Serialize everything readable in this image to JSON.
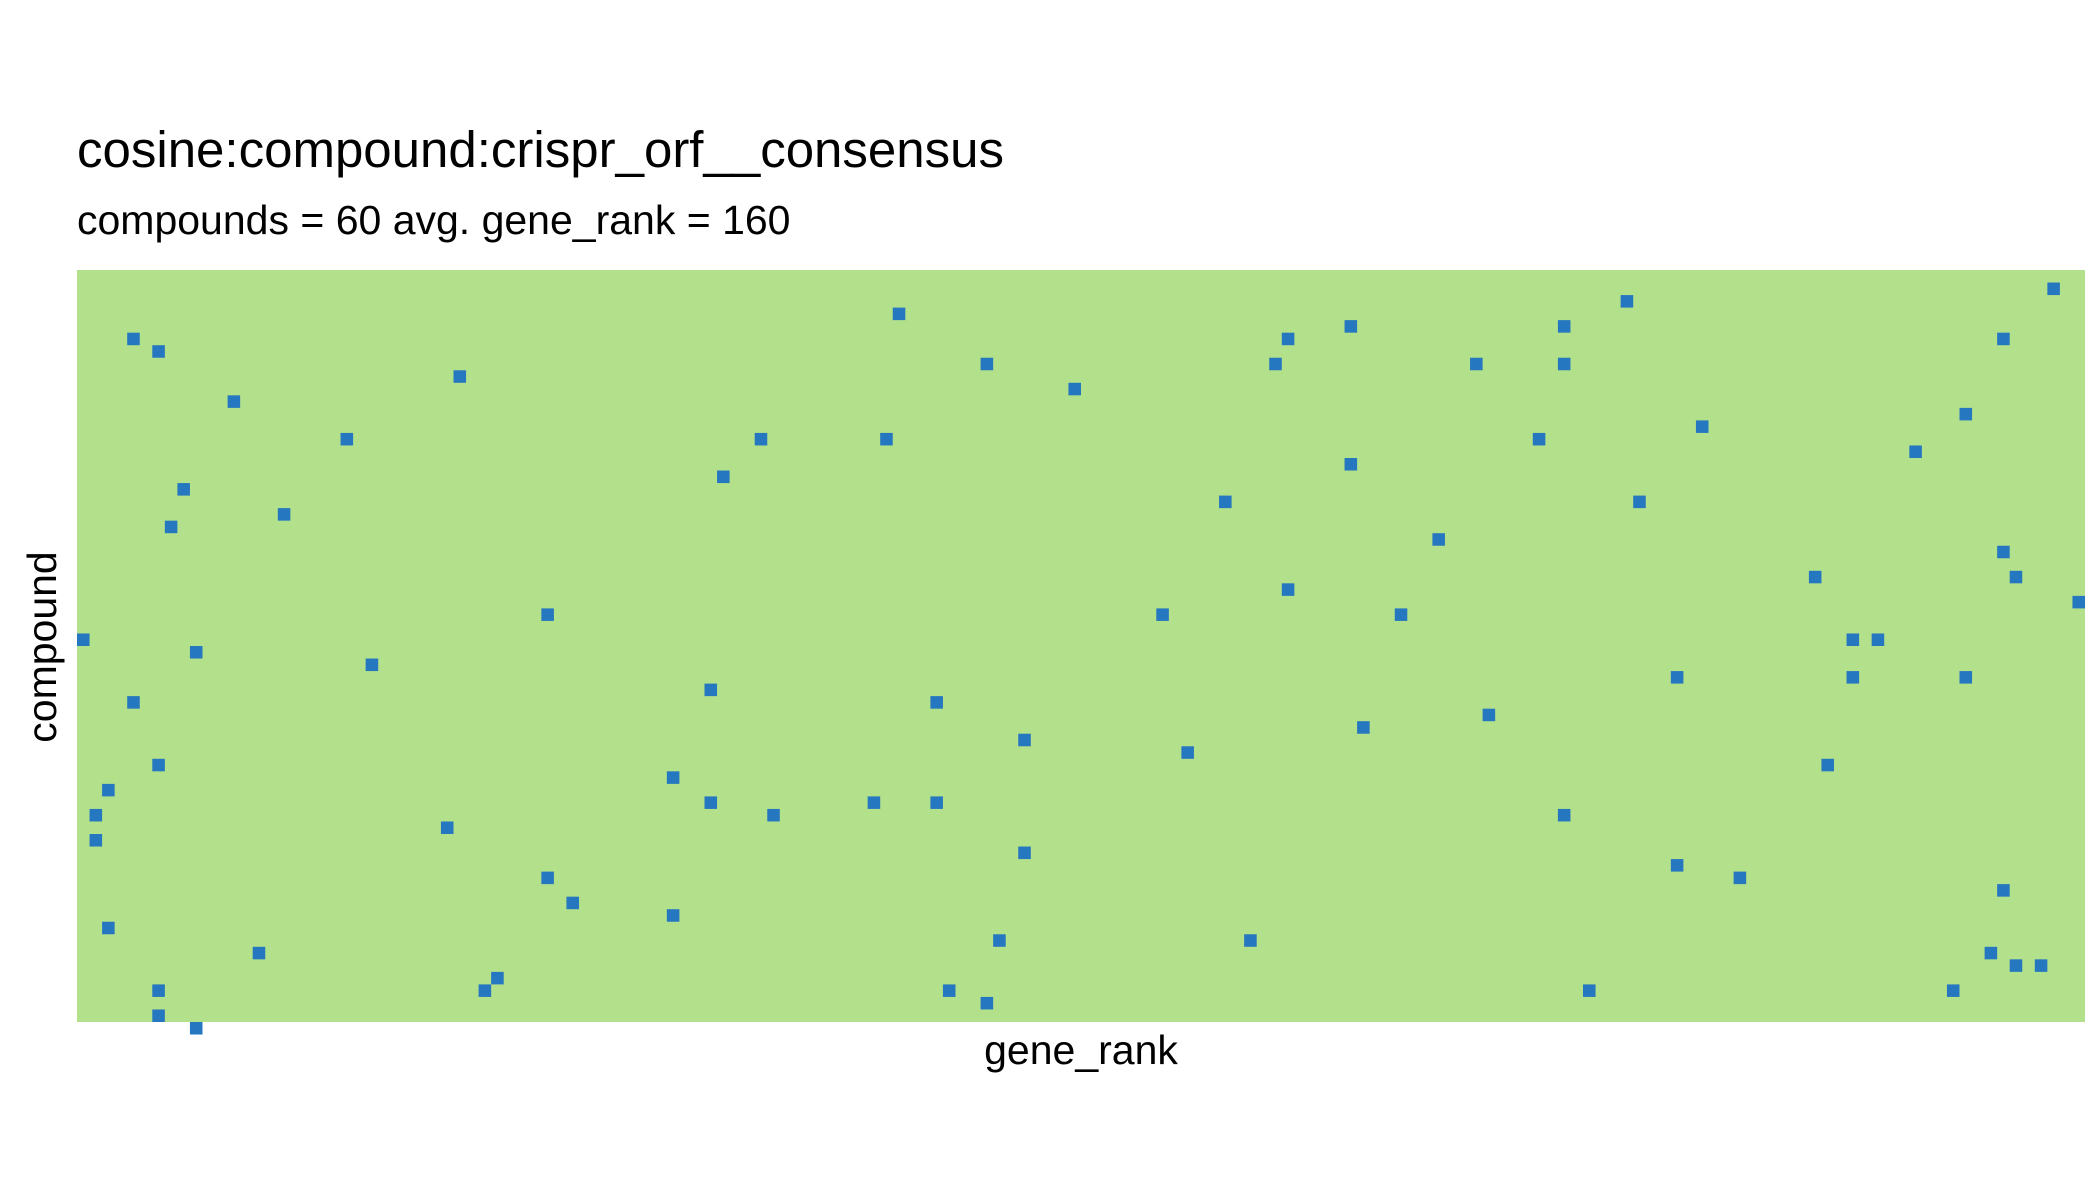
{
  "chart_data": {
    "type": "heatmap",
    "title": "cosine:compound:crispr_orf__consensus",
    "subtitle": "compounds = 60 avg. gene_rank = 160",
    "xlabel": "gene_rank",
    "ylabel": "compound",
    "x_count": 160,
    "y_count": 60,
    "colors": {
      "background": "#b3e08b",
      "marker": "#2577c0"
    },
    "grid": false,
    "legend": "none",
    "points": [
      [
        157,
        1
      ],
      [
        65,
        3
      ],
      [
        123,
        2
      ],
      [
        101,
        4
      ],
      [
        118,
        4
      ],
      [
        4,
        5
      ],
      [
        6,
        6
      ],
      [
        96,
        5
      ],
      [
        153,
        5
      ],
      [
        72,
        7
      ],
      [
        95,
        7
      ],
      [
        111,
        7
      ],
      [
        118,
        7
      ],
      [
        30,
        8
      ],
      [
        79,
        9
      ],
      [
        12,
        10
      ],
      [
        150,
        11
      ],
      [
        129,
        12
      ],
      [
        21,
        13
      ],
      [
        54,
        13
      ],
      [
        64,
        13
      ],
      [
        116,
        13
      ],
      [
        146,
        14
      ],
      [
        101,
        15
      ],
      [
        51,
        16
      ],
      [
        8,
        17
      ],
      [
        124,
        18
      ],
      [
        91,
        18
      ],
      [
        16,
        19
      ],
      [
        7,
        20
      ],
      [
        108,
        21
      ],
      [
        153,
        22
      ],
      [
        138,
        24
      ],
      [
        154,
        24
      ],
      [
        96,
        25
      ],
      [
        37,
        27
      ],
      [
        86,
        27
      ],
      [
        105,
        27
      ],
      [
        159,
        26
      ],
      [
        0,
        29
      ],
      [
        141,
        29
      ],
      [
        143,
        29
      ],
      [
        9,
        30
      ],
      [
        23,
        31
      ],
      [
        127,
        32
      ],
      [
        150,
        32
      ],
      [
        141,
        32
      ],
      [
        50,
        33
      ],
      [
        4,
        34
      ],
      [
        68,
        34
      ],
      [
        112,
        35
      ],
      [
        102,
        36
      ],
      [
        75,
        37
      ],
      [
        88,
        38
      ],
      [
        6,
        39
      ],
      [
        139,
        39
      ],
      [
        47,
        40
      ],
      [
        2,
        41
      ],
      [
        50,
        42
      ],
      [
        63,
        42
      ],
      [
        68,
        42
      ],
      [
        1,
        43
      ],
      [
        55,
        43
      ],
      [
        118,
        43
      ],
      [
        29,
        44
      ],
      [
        1,
        45
      ],
      [
        75,
        46
      ],
      [
        127,
        47
      ],
      [
        37,
        48
      ],
      [
        132,
        48
      ],
      [
        153,
        49
      ],
      [
        39,
        50
      ],
      [
        47,
        51
      ],
      [
        2,
        52
      ],
      [
        73,
        53
      ],
      [
        93,
        53
      ],
      [
        14,
        54
      ],
      [
        152,
        54
      ],
      [
        154,
        55
      ],
      [
        33,
        56
      ],
      [
        156,
        55
      ],
      [
        6,
        57
      ],
      [
        32,
        57
      ],
      [
        69,
        57
      ],
      [
        120,
        57
      ],
      [
        149,
        57
      ],
      [
        72,
        58
      ],
      [
        6,
        59
      ],
      [
        9,
        60
      ]
    ]
  }
}
